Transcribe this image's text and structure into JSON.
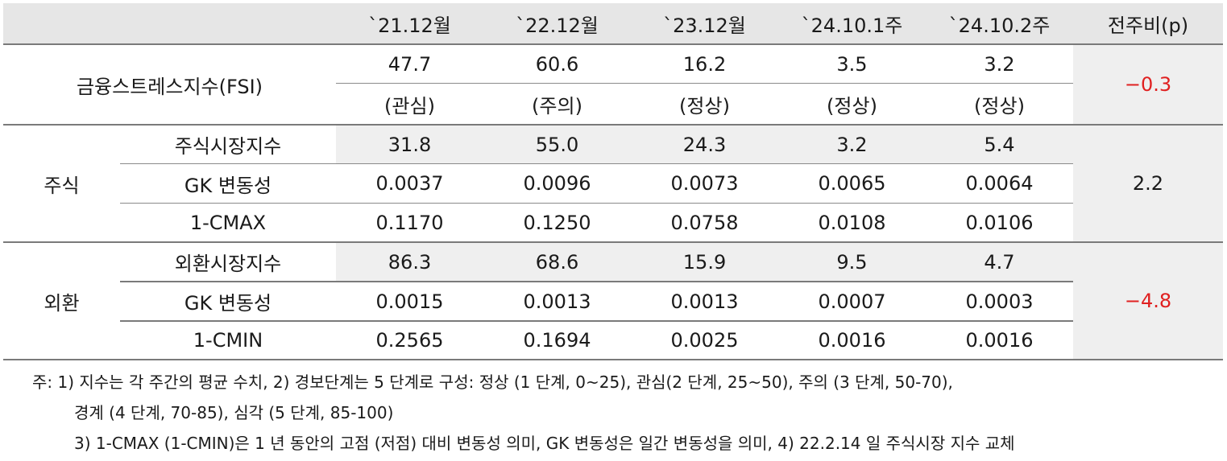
{
  "header": {
    "columns": [
      "`21.12월",
      "`22.12월",
      "`23.12월",
      "`24.10.1주",
      "`24.10.2주",
      "전주비(p)"
    ]
  },
  "fsi": {
    "label": "금융스트레스지수(FSI)",
    "values": [
      "47.7",
      "60.6",
      "16.2",
      "3.5",
      "3.2"
    ],
    "status": [
      "(관심)",
      "(주의)",
      "(정상)",
      "(정상)",
      "(정상)"
    ],
    "change": "−0.3"
  },
  "stock": {
    "group": "주식",
    "change": "2.2",
    "rows": [
      {
        "label": "주식시장지수",
        "values": [
          "31.8",
          "55.0",
          "24.3",
          "3.2",
          "5.4"
        ]
      },
      {
        "label": "GK 변동성",
        "values": [
          "0.0037",
          "0.0096",
          "0.0073",
          "0.0065",
          "0.0064"
        ]
      },
      {
        "label": "1-CMAX",
        "values": [
          "0.1170",
          "0.1250",
          "0.0758",
          "0.0108",
          "0.0106"
        ]
      }
    ]
  },
  "fx": {
    "group": "외환",
    "change": "−4.8",
    "rows": [
      {
        "label": "외환시장지수",
        "values": [
          "86.3",
          "68.6",
          "15.9",
          "9.5",
          "4.7"
        ]
      },
      {
        "label": "GK 변동성",
        "values": [
          "0.0015",
          "0.0013",
          "0.0013",
          "0.0007",
          "0.0003"
        ]
      },
      {
        "label": "1-CMIN",
        "values": [
          "0.2565",
          "0.1694",
          "0.0025",
          "0.0016",
          "0.0016"
        ]
      }
    ]
  },
  "notes": [
    "주: 1) 지수는 각 주간의 평균 수치, 2) 경보단계는 5 단계로 구성: 정상 (1 단계, 0~25), 관심(2 단계, 25~50), 주의 (3 단계, 50-70),",
    "경계 (4 단계, 70-85), 심각 (5 단계, 85-100)",
    "3) 1-CMAX (1-CMIN)은 1 년 동안의 고점 (저점) 대비 변동성 의미, GK 변동성은 일간 변동성을 의미, 4) 22.2.14 일 주식시장 지수 교체"
  ],
  "colors": {
    "header_bg": "#e6e6e6",
    "shade_bg": "#efefef",
    "negative": "#e02020"
  }
}
